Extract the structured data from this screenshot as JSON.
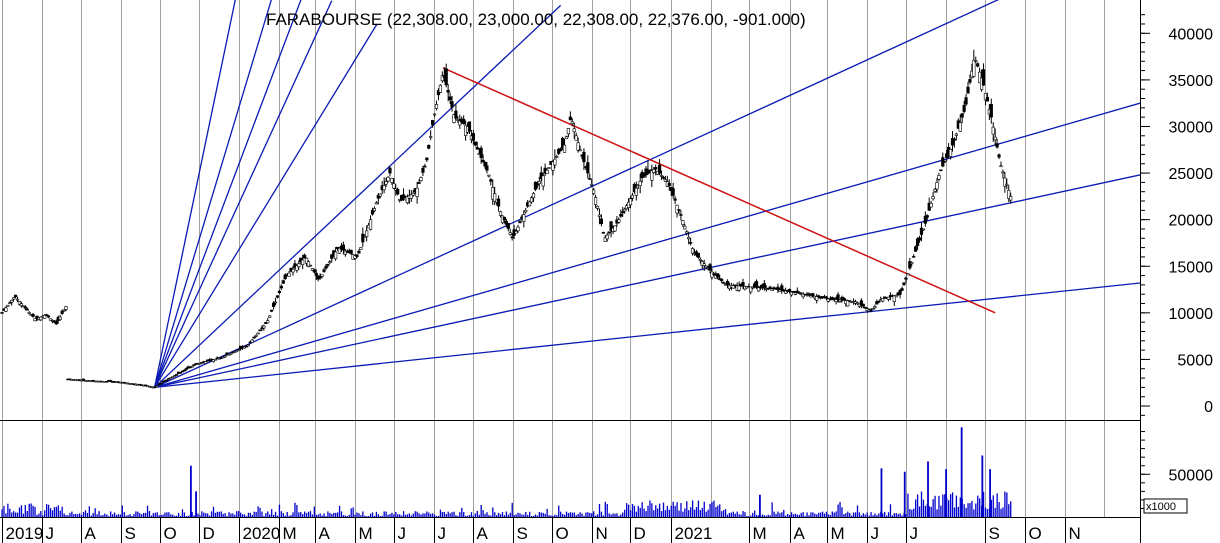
{
  "chart_data": {
    "type": "candlestick",
    "title": "FARABOURSE (22,308.00, 23,000.00, 22,308.00, 22,376.00, -901.000)",
    "price_axis": {
      "ylim": [
        -1500,
        42500
      ],
      "ticks": [
        "40000",
        "35000",
        "30000",
        "25000",
        "20000",
        "15000",
        "10000",
        "5000",
        "0"
      ],
      "tick_values": [
        40000,
        35000,
        30000,
        25000,
        20000,
        15000,
        10000,
        5000,
        0
      ]
    },
    "volume_axis": {
      "ylim": [
        0,
        110000
      ],
      "ticks": [
        "50000"
      ],
      "tick_values": [
        50000
      ],
      "unit_label": "x1000"
    },
    "x_tick_labels": [
      "2019",
      "J",
      "A",
      "S",
      "O",
      "D",
      "2020",
      "M",
      "A",
      "M",
      "J",
      "J",
      "A",
      "S",
      "O",
      "N",
      "D",
      "2021",
      "M",
      "A",
      "M",
      "J",
      "J",
      "S",
      "O",
      "N"
    ],
    "x_tick_day": [
      0,
      31,
      61,
      92,
      122,
      152,
      183,
      214,
      242,
      273,
      303,
      334,
      364,
      395,
      425,
      456,
      486,
      517,
      578,
      609,
      638,
      669,
      699,
      760,
      791,
      822
    ],
    "x_range_days": [
      0,
      880
    ],
    "vertical_grid_days": [
      0,
      31,
      61,
      92,
      122,
      152,
      183,
      214,
      242,
      273,
      303,
      334,
      364,
      395,
      425,
      456,
      486,
      517,
      548,
      578,
      609,
      638,
      669,
      699,
      730,
      760,
      791,
      822,
      852
    ],
    "ohlc_anchors": [
      [
        0,
        10000
      ],
      [
        10,
        11800
      ],
      [
        18,
        10500
      ],
      [
        26,
        9300
      ],
      [
        34,
        9800
      ],
      [
        42,
        8800
      ],
      [
        50,
        10800
      ],
      [
        51,
        2900
      ],
      [
        70,
        2700
      ],
      [
        90,
        2600
      ],
      [
        112,
        2200
      ],
      [
        118,
        2000
      ],
      [
        130,
        3000
      ],
      [
        150,
        4500
      ],
      [
        170,
        5200
      ],
      [
        190,
        6500
      ],
      [
        205,
        9000
      ],
      [
        220,
        14000
      ],
      [
        235,
        16000
      ],
      [
        245,
        13500
      ],
      [
        260,
        17000
      ],
      [
        275,
        16000
      ],
      [
        290,
        22000
      ],
      [
        300,
        25000
      ],
      [
        308,
        22000
      ],
      [
        320,
        23000
      ],
      [
        328,
        26000
      ],
      [
        334,
        31000
      ],
      [
        341,
        35800
      ],
      [
        350,
        31000
      ],
      [
        360,
        30000
      ],
      [
        366,
        28000
      ],
      [
        376,
        25000
      ],
      [
        385,
        21000
      ],
      [
        395,
        18000
      ],
      [
        405,
        21000
      ],
      [
        415,
        24000
      ],
      [
        425,
        26000
      ],
      [
        435,
        28000
      ],
      [
        440,
        31000
      ],
      [
        448,
        27000
      ],
      [
        458,
        23000
      ],
      [
        466,
        18000
      ],
      [
        475,
        19500
      ],
      [
        485,
        22000
      ],
      [
        495,
        24500
      ],
      [
        505,
        25500
      ],
      [
        515,
        24000
      ],
      [
        525,
        20500
      ],
      [
        535,
        16500
      ],
      [
        548,
        14500
      ],
      [
        560,
        13000
      ],
      [
        578,
        12800
      ],
      [
        600,
        12500
      ],
      [
        620,
        12000
      ],
      [
        640,
        11500
      ],
      [
        660,
        11200
      ],
      [
        672,
        10200
      ],
      [
        680,
        11500
      ],
      [
        695,
        12000
      ],
      [
        705,
        16000
      ],
      [
        715,
        20000
      ],
      [
        725,
        25000
      ],
      [
        735,
        28000
      ],
      [
        745,
        32000
      ],
      [
        752,
        37500
      ],
      [
        758,
        35000
      ],
      [
        765,
        31000
      ],
      [
        772,
        26000
      ],
      [
        780,
        22500
      ]
    ],
    "volume_spikes": [
      [
        742,
        105000
      ],
      [
        758,
        72000
      ],
      [
        716,
        65000
      ],
      [
        730,
        56000
      ],
      [
        146,
        60000
      ],
      [
        680,
        57000
      ],
      [
        698,
        53000
      ],
      [
        764,
        56000
      ],
      [
        150,
        30000
      ],
      [
        586,
        26000
      ]
    ],
    "trend_lines": {
      "fan_origin": [
        118,
        2000
      ],
      "fan_targets": [
        [
          190,
          50000
        ],
        [
          220,
          49000
        ],
        [
          235,
          45000
        ],
        [
          255,
          43500
        ],
        [
          290,
          41000
        ],
        [
          432,
          43000
        ],
        [
          800,
          45500
        ],
        [
          880,
          32500
        ],
        [
          880,
          24800
        ],
        [
          880,
          13200
        ]
      ],
      "red_line": [
        [
          341,
          36300
        ],
        [
          768,
          10000
        ]
      ]
    },
    "colors": {
      "candle": "#000000",
      "volume": "#0000cc",
      "fan_line": "#0b1ab5",
      "trend_line": "#cc1111",
      "grid": "#a0a0a0"
    }
  }
}
